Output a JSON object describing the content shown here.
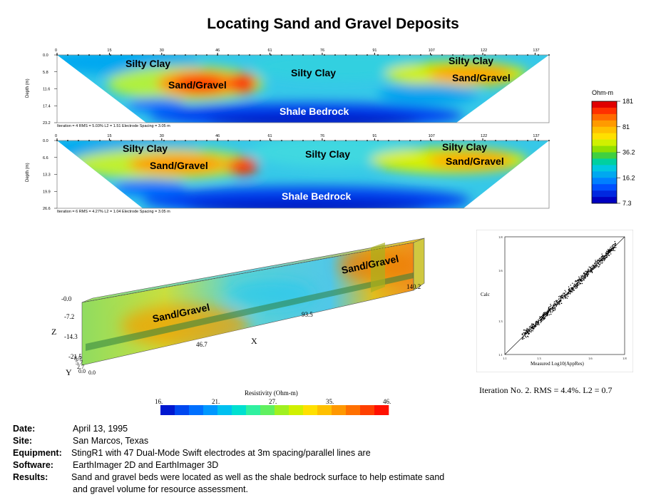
{
  "title": "Locating Sand and Gravel Deposits",
  "sections": [
    {
      "id": "section1",
      "x_ticks": [
        "0",
        "15",
        "30",
        "46",
        "61",
        "76",
        "91",
        "107",
        "122",
        "137"
      ],
      "depth_ticks": [
        "0.0",
        "5.8",
        "11.6",
        "17.4",
        "23.2"
      ],
      "depth_label": "Depth (m)",
      "footer": "Iteration = 4   RMS = 5.03%   L2 = 1.51   Electrode Spacing = 3.05 m",
      "labels": {
        "silty_clay_left": "Silty Clay",
        "silty_clay_mid": "Silty Clay",
        "silty_clay_right": "Silty Clay",
        "sand_gravel_left": "Sand/Gravel",
        "sand_gravel_right": "Sand/Gravel",
        "shale": "Shale Bedrock"
      }
    },
    {
      "id": "section2",
      "x_ticks": [
        "0",
        "15",
        "30",
        "46",
        "61",
        "76",
        "91",
        "107",
        "122",
        "137"
      ],
      "depth_ticks": [
        "0.0",
        "6.6",
        "13.3",
        "19.9",
        "26.6"
      ],
      "depth_label": "Depth (m)",
      "footer": "Iteration = 6   RMS = 4.27%   L2 = 1.04   Electrode Spacing = 3.05 m",
      "labels": {
        "silty_clay_left": "Silty Clay",
        "silty_clay_mid": "Silty Clay",
        "silty_clay_right": "Silty Clay",
        "sand_gravel_left": "Sand/Gravel",
        "sand_gravel_right": "Sand/Gravel",
        "shale": "Shale Bedrock"
      }
    }
  ],
  "colorbar": {
    "unit": "Ohm-m",
    "ticks": [
      "181",
      "81",
      "36.2",
      "16.2",
      "7.3"
    ],
    "colors": [
      "#e00000",
      "#ff3000",
      "#ff6a00",
      "#ff9a00",
      "#ffc000",
      "#ffe000",
      "#d0f000",
      "#90e000",
      "#40d040",
      "#00d0a0",
      "#00c8e0",
      "#00a8f0",
      "#0080ff",
      "#0050ff",
      "#0028e0",
      "#0000c0"
    ]
  },
  "block3d": {
    "z_label": "Z",
    "x_label": "X",
    "y_label": "Y",
    "z_ticks": [
      "-0.0",
      "-7.2",
      "-14.3",
      "-21.5"
    ],
    "x_ticks": [
      "46.7",
      "93.5",
      "140.2"
    ],
    "y_ticks": [
      "8.5",
      "5.7",
      "2.7",
      "0.0"
    ],
    "x_origin": "0.0",
    "label_left": "Sand/Gravel",
    "label_right": "Sand/Gravel"
  },
  "resistivity_bar": {
    "title": "Resistivity (Ohm-m)",
    "ticks": [
      "16.",
      "21.",
      "27.",
      "35.",
      "46."
    ],
    "colors": [
      "#0018d0",
      "#0048f0",
      "#0070ff",
      "#0098ff",
      "#00c0f0",
      "#00e0d0",
      "#30f0a0",
      "#60f060",
      "#a0f020",
      "#d0f000",
      "#ffe000",
      "#ffc000",
      "#ff9800",
      "#ff7000",
      "#ff4000",
      "#ff1000"
    ]
  },
  "scatter": {
    "type": "scatter",
    "xlabel": "Measured Log10(AppRes)",
    "ylabel": "Calc",
    "x_ticks": [
      "1.1",
      "1.3",
      "1.6",
      "1.8"
    ],
    "y_ticks": [
      "1.8",
      "1.6",
      "1.3",
      "1.1"
    ],
    "xlim": [
      1.1,
      1.8
    ],
    "ylim": [
      1.1,
      1.8
    ],
    "iteration_text": "Iteration No. 2.  RMS = 4.4%.  L2 = 0.7"
  },
  "info": [
    {
      "label": "Date:",
      "value": "April 13, 1995"
    },
    {
      "label": "Site:",
      "value": "San Marcos, Texas"
    },
    {
      "label": "Equipment:",
      "value": "StingR1 with 47 Dual-Mode Swift electrodes at 3m spacing/parallel lines are"
    },
    {
      "label": "Software:",
      "value": "EarthImager 2D and EarthImager 3D"
    },
    {
      "label": "Results:",
      "value": "Sand and gravel beds were located as well as the shale bedrock surface to help estimate sand"
    },
    {
      "label": "",
      "value": "and gravel volume for resource assessment."
    }
  ]
}
